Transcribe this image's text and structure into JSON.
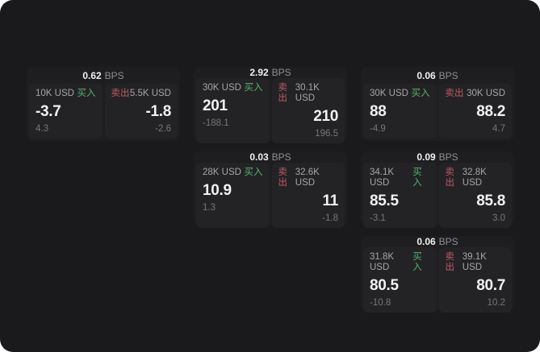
{
  "labels": {
    "buy": "买入",
    "sell": "卖出",
    "bps_unit": "BPS"
  },
  "colors": {
    "surface": "#1a1a1c",
    "card_bg": "#1e1e20",
    "panel_bg": "#232326",
    "buy_green": "#58b26f",
    "sell_red": "#c15965",
    "value_white": "#f2f2f3",
    "muted_gray": "#8f8f92"
  },
  "cards": [
    {
      "bps": "0.62",
      "buy": {
        "amount": "10K USD",
        "price": "-3.7",
        "change": "4.3"
      },
      "sell": {
        "amount": "5.5K USD",
        "price": "-1.8",
        "change": "-2.6"
      }
    },
    {
      "bps": "2.92",
      "buy": {
        "amount": "30K USD",
        "price": "201",
        "change": "-188.1"
      },
      "sell": {
        "amount": "30.1K USD",
        "price": "210",
        "change": "196.5"
      }
    },
    {
      "bps": "0.06",
      "buy": {
        "amount": "30K USD",
        "price": "88",
        "change": "-4.9"
      },
      "sell": {
        "amount": "30K USD",
        "price": "88.2",
        "change": "4.7"
      }
    },
    {
      "bps": "0.03",
      "buy": {
        "amount": "28K USD",
        "price": "10.9",
        "change": "1.3"
      },
      "sell": {
        "amount": "32.6K USD",
        "price": "11",
        "change": "-1.8"
      }
    },
    {
      "bps": "0.09",
      "buy": {
        "amount": "34.1K USD",
        "price": "85.5",
        "change": "-3.1"
      },
      "sell": {
        "amount": "32.8K USD",
        "price": "85.8",
        "change": "3.0"
      }
    },
    {
      "bps": "0.06",
      "buy": {
        "amount": "31.8K USD",
        "price": "80.5",
        "change": "-10.8"
      },
      "sell": {
        "amount": "39.1K USD",
        "price": "80.7",
        "change": "10.2"
      }
    }
  ]
}
